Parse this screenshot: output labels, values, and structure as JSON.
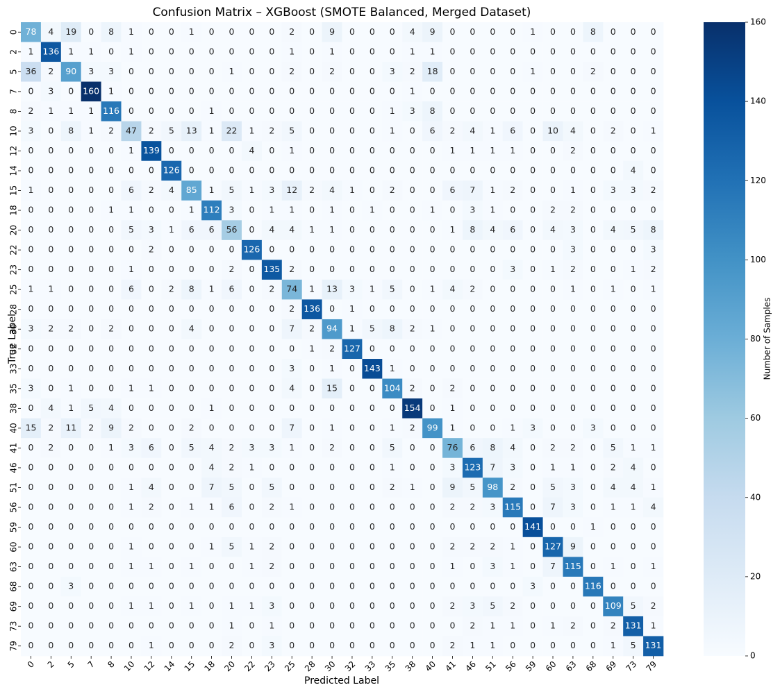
{
  "chart_data": {
    "type": "heatmap",
    "title": "Confusion Matrix – XGBoost (SMOTE Balanced, Merged Dataset)",
    "x_label": "Predicted Label",
    "y_label": "True Label",
    "x_categories": [
      "0",
      "2",
      "5",
      "7",
      "8",
      "10",
      "12",
      "14",
      "15",
      "18",
      "20",
      "22",
      "23",
      "25",
      "28",
      "30",
      "32",
      "33",
      "35",
      "38",
      "40",
      "41",
      "46",
      "51",
      "56",
      "59",
      "60",
      "63",
      "68",
      "69",
      "73",
      "79"
    ],
    "y_categories": [
      "0",
      "2",
      "5",
      "7",
      "8",
      "10",
      "12",
      "14",
      "15",
      "18",
      "20",
      "22",
      "23",
      "25",
      "28",
      "30",
      "32",
      "33",
      "35",
      "38",
      "40",
      "41",
      "46",
      "51",
      "56",
      "59",
      "60",
      "63",
      "68",
      "69",
      "73",
      "79"
    ],
    "values": [
      [
        78,
        4,
        19,
        0,
        8,
        1,
        0,
        0,
        1,
        0,
        0,
        0,
        0,
        2,
        0,
        9,
        0,
        0,
        0,
        4,
        9,
        0,
        0,
        0,
        0,
        1,
        0,
        0,
        8,
        0,
        0,
        0
      ],
      [
        1,
        136,
        1,
        1,
        0,
        1,
        0,
        0,
        0,
        0,
        0,
        0,
        0,
        1,
        0,
        1,
        0,
        0,
        0,
        1,
        1,
        0,
        0,
        0,
        0,
        0,
        0,
        0,
        0,
        0,
        0,
        0
      ],
      [
        36,
        2,
        90,
        3,
        3,
        0,
        0,
        0,
        0,
        0,
        1,
        0,
        0,
        2,
        0,
        2,
        0,
        0,
        3,
        2,
        18,
        0,
        0,
        0,
        0,
        1,
        0,
        0,
        2,
        0,
        0,
        0
      ],
      [
        0,
        3,
        0,
        160,
        1,
        0,
        0,
        0,
        0,
        0,
        0,
        0,
        0,
        0,
        0,
        0,
        0,
        0,
        0,
        1,
        0,
        0,
        0,
        0,
        0,
        0,
        0,
        0,
        0,
        0,
        0,
        0
      ],
      [
        2,
        1,
        1,
        1,
        116,
        0,
        0,
        0,
        0,
        1,
        0,
        0,
        0,
        0,
        0,
        0,
        0,
        0,
        1,
        3,
        8,
        0,
        0,
        0,
        0,
        0,
        0,
        0,
        0,
        0,
        0,
        0
      ],
      [
        3,
        0,
        8,
        1,
        2,
        47,
        2,
        5,
        13,
        1,
        22,
        1,
        2,
        5,
        0,
        0,
        0,
        0,
        1,
        0,
        6,
        2,
        4,
        1,
        6,
        0,
        10,
        4,
        0,
        2,
        0,
        1
      ],
      [
        0,
        0,
        0,
        0,
        0,
        1,
        139,
        0,
        0,
        0,
        0,
        4,
        0,
        1,
        0,
        0,
        0,
        0,
        0,
        0,
        0,
        1,
        1,
        1,
        1,
        0,
        0,
        2,
        0,
        0,
        0,
        0
      ],
      [
        0,
        0,
        0,
        0,
        0,
        0,
        0,
        126,
        0,
        0,
        0,
        0,
        0,
        0,
        0,
        0,
        0,
        0,
        0,
        0,
        0,
        0,
        0,
        0,
        0,
        0,
        0,
        0,
        0,
        0,
        4,
        0
      ],
      [
        1,
        0,
        0,
        0,
        0,
        6,
        2,
        4,
        85,
        1,
        5,
        1,
        3,
        12,
        2,
        4,
        1,
        0,
        2,
        0,
        0,
        6,
        7,
        1,
        2,
        0,
        0,
        1,
        0,
        3,
        3,
        2
      ],
      [
        0,
        0,
        0,
        0,
        1,
        1,
        0,
        0,
        1,
        112,
        3,
        0,
        1,
        1,
        0,
        1,
        0,
        1,
        0,
        0,
        1,
        0,
        3,
        1,
        0,
        0,
        2,
        2,
        0,
        0,
        0,
        0
      ],
      [
        0,
        0,
        0,
        0,
        0,
        5,
        3,
        1,
        6,
        6,
        56,
        0,
        4,
        4,
        1,
        1,
        0,
        0,
        0,
        0,
        0,
        1,
        8,
        4,
        6,
        0,
        4,
        3,
        0,
        4,
        5,
        8
      ],
      [
        0,
        0,
        0,
        0,
        0,
        0,
        2,
        0,
        0,
        0,
        0,
        126,
        0,
        0,
        0,
        0,
        0,
        0,
        0,
        0,
        0,
        0,
        0,
        0,
        0,
        0,
        0,
        3,
        0,
        0,
        0,
        3
      ],
      [
        0,
        0,
        0,
        0,
        0,
        1,
        0,
        0,
        0,
        0,
        2,
        0,
        135,
        2,
        0,
        0,
        0,
        0,
        0,
        0,
        0,
        0,
        0,
        0,
        3,
        0,
        1,
        2,
        0,
        0,
        1,
        2
      ],
      [
        1,
        1,
        0,
        0,
        0,
        6,
        0,
        2,
        8,
        1,
        6,
        0,
        2,
        74,
        1,
        13,
        3,
        1,
        5,
        0,
        1,
        4,
        2,
        0,
        0,
        0,
        0,
        1,
        0,
        1,
        0,
        1
      ],
      [
        0,
        0,
        0,
        0,
        0,
        0,
        0,
        0,
        0,
        0,
        0,
        0,
        0,
        2,
        136,
        0,
        1,
        0,
        0,
        0,
        0,
        0,
        0,
        0,
        0,
        0,
        0,
        0,
        0,
        0,
        0,
        0
      ],
      [
        3,
        2,
        2,
        0,
        2,
        0,
        0,
        0,
        4,
        0,
        0,
        0,
        0,
        7,
        2,
        94,
        1,
        5,
        8,
        2,
        1,
        0,
        0,
        0,
        0,
        0,
        0,
        0,
        0,
        0,
        0,
        0
      ],
      [
        0,
        0,
        0,
        0,
        0,
        0,
        0,
        0,
        0,
        0,
        0,
        0,
        0,
        0,
        1,
        2,
        127,
        0,
        0,
        0,
        0,
        0,
        0,
        0,
        0,
        0,
        0,
        0,
        0,
        0,
        0,
        0
      ],
      [
        0,
        0,
        0,
        0,
        0,
        0,
        0,
        0,
        0,
        0,
        0,
        0,
        0,
        3,
        0,
        1,
        0,
        143,
        1,
        0,
        0,
        0,
        0,
        0,
        0,
        0,
        0,
        0,
        0,
        0,
        0,
        0
      ],
      [
        3,
        0,
        1,
        0,
        0,
        1,
        1,
        0,
        0,
        0,
        0,
        0,
        0,
        4,
        0,
        15,
        0,
        0,
        104,
        2,
        0,
        2,
        0,
        0,
        0,
        0,
        0,
        0,
        0,
        0,
        0,
        0
      ],
      [
        0,
        4,
        1,
        5,
        4,
        0,
        0,
        0,
        0,
        1,
        0,
        0,
        0,
        0,
        0,
        0,
        0,
        0,
        0,
        154,
        0,
        1,
        0,
        0,
        0,
        0,
        0,
        0,
        0,
        0,
        0,
        0
      ],
      [
        15,
        2,
        11,
        2,
        9,
        2,
        0,
        0,
        2,
        0,
        0,
        0,
        0,
        7,
        0,
        1,
        0,
        0,
        1,
        2,
        99,
        1,
        0,
        0,
        1,
        3,
        0,
        0,
        3,
        0,
        0,
        0
      ],
      [
        0,
        2,
        0,
        0,
        1,
        3,
        6,
        0,
        5,
        4,
        2,
        3,
        3,
        1,
        0,
        2,
        0,
        0,
        5,
        0,
        0,
        76,
        6,
        8,
        4,
        0,
        2,
        2,
        0,
        5,
        1,
        1
      ],
      [
        0,
        0,
        0,
        0,
        0,
        0,
        0,
        0,
        0,
        4,
        2,
        1,
        0,
        0,
        0,
        0,
        0,
        0,
        1,
        0,
        0,
        3,
        123,
        7,
        3,
        0,
        1,
        1,
        0,
        2,
        4,
        0
      ],
      [
        0,
        0,
        0,
        0,
        0,
        1,
        4,
        0,
        0,
        7,
        5,
        0,
        5,
        0,
        0,
        0,
        0,
        0,
        2,
        1,
        0,
        9,
        5,
        98,
        2,
        0,
        5,
        3,
        0,
        4,
        4,
        1
      ],
      [
        0,
        0,
        0,
        0,
        0,
        1,
        2,
        0,
        1,
        1,
        6,
        0,
        2,
        1,
        0,
        0,
        0,
        0,
        0,
        0,
        0,
        2,
        2,
        3,
        115,
        0,
        7,
        3,
        0,
        1,
        1,
        4
      ],
      [
        0,
        0,
        0,
        0,
        0,
        0,
        0,
        0,
        0,
        0,
        0,
        0,
        0,
        0,
        0,
        0,
        0,
        0,
        0,
        0,
        0,
        0,
        0,
        0,
        0,
        141,
        0,
        0,
        1,
        0,
        0,
        0
      ],
      [
        0,
        0,
        0,
        0,
        0,
        1,
        0,
        0,
        0,
        1,
        5,
        1,
        2,
        0,
        0,
        0,
        0,
        0,
        0,
        0,
        0,
        2,
        2,
        2,
        1,
        0,
        127,
        9,
        0,
        0,
        0,
        0
      ],
      [
        0,
        0,
        0,
        0,
        0,
        1,
        1,
        0,
        1,
        0,
        0,
        1,
        2,
        0,
        0,
        0,
        0,
        0,
        0,
        0,
        0,
        1,
        0,
        3,
        1,
        0,
        7,
        115,
        0,
        1,
        0,
        1
      ],
      [
        0,
        0,
        3,
        0,
        0,
        0,
        0,
        0,
        0,
        0,
        0,
        0,
        0,
        0,
        0,
        0,
        0,
        0,
        0,
        0,
        0,
        0,
        0,
        0,
        0,
        3,
        0,
        0,
        116,
        0,
        0,
        0
      ],
      [
        0,
        0,
        0,
        0,
        0,
        1,
        1,
        0,
        1,
        0,
        1,
        1,
        3,
        0,
        0,
        0,
        0,
        0,
        0,
        0,
        0,
        2,
        3,
        5,
        2,
        0,
        0,
        0,
        0,
        109,
        5,
        2
      ],
      [
        0,
        0,
        0,
        0,
        0,
        0,
        0,
        0,
        0,
        0,
        1,
        0,
        1,
        0,
        0,
        0,
        0,
        0,
        0,
        0,
        0,
        0,
        2,
        1,
        1,
        0,
        1,
        2,
        0,
        2,
        131,
        1
      ],
      [
        0,
        0,
        0,
        0,
        0,
        0,
        1,
        0,
        0,
        0,
        2,
        0,
        3,
        0,
        0,
        0,
        0,
        0,
        0,
        0,
        0,
        2,
        1,
        1,
        0,
        0,
        0,
        0,
        0,
        1,
        5,
        131
      ]
    ],
    "zlim": [
      0,
      160
    ],
    "zticks": [
      0,
      20,
      40,
      60,
      80,
      100,
      120,
      140,
      160
    ],
    "colorbar_label": "Number of Samples",
    "colormap": [
      "#f7fbff",
      "#deebf7",
      "#c6dbef",
      "#9ecae1",
      "#6baed6",
      "#4292c6",
      "#2171b5",
      "#08519c",
      "#08306b"
    ]
  }
}
